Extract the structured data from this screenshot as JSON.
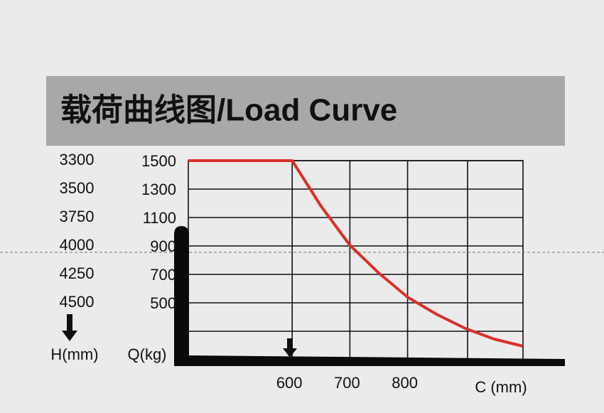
{
  "chart_data": {
    "type": "line",
    "title": "载荷曲线图/Load Curve",
    "x_label": "C (mm)",
    "y_label": "Q(kg)",
    "h_label": "H(mm)",
    "h_values": [
      3300,
      3500,
      3750,
      4000,
      4250,
      4500
    ],
    "x": [
      420,
      600,
      650,
      700,
      750,
      800,
      850,
      900,
      950,
      1000
    ],
    "series": [
      {
        "color": "#d9312b",
        "values": [
          1500,
          1500,
          1180,
          905,
          710,
          540,
          420,
          320,
          245,
          195
        ]
      }
    ],
    "xlim": [
      420,
      1000
    ],
    "xticks": [
      600,
      700,
      800
    ],
    "ylim": [
      100,
      1500
    ],
    "yticks": [
      1500,
      1300,
      1100,
      900,
      700,
      500
    ],
    "grid": true
  }
}
